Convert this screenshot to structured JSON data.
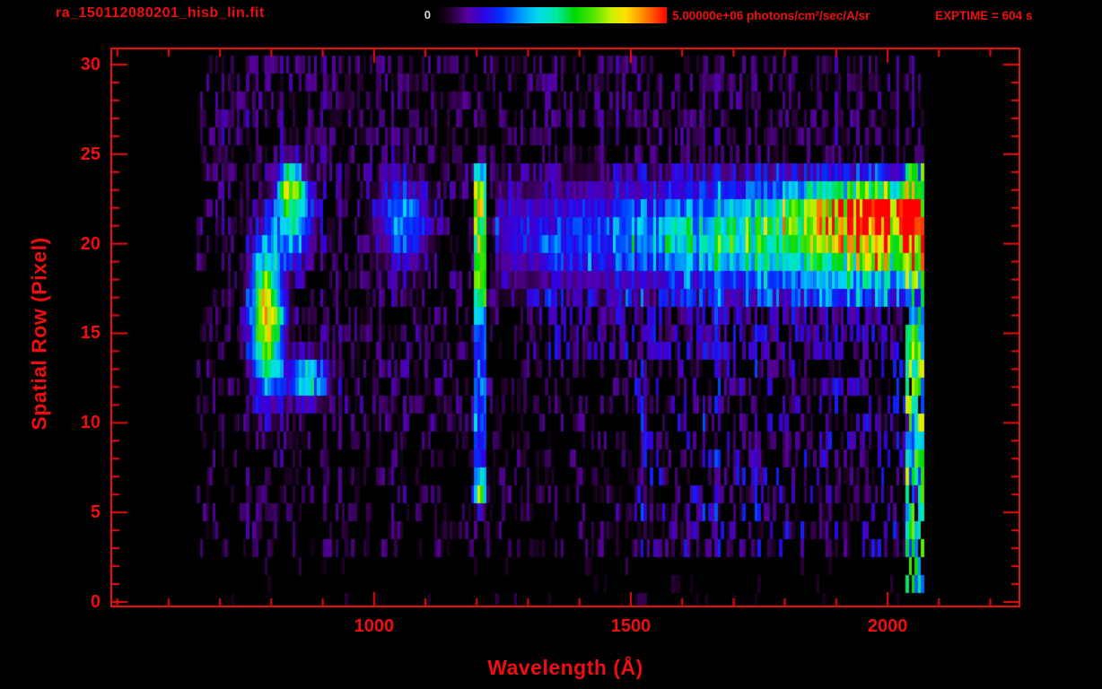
{
  "header": {
    "filename": "ra_150112080201_hisb_lin.fit",
    "colorbar_min": "0",
    "colorbar_max": "5.00000e+06 photons/cm²/sec/A/sr",
    "exptime": "EXPTIME = 604 s"
  },
  "colors": {
    "accent": "#ef0e0e",
    "background": "#000000",
    "colorbar_min_text": "#d9d9d9"
  },
  "chart_data": {
    "type": "heatmap",
    "title": "ra_150112080201_hisb_lin.fit",
    "xlabel": "Wavelength (Å)",
    "ylabel": "Spatial Row (Pixel)",
    "xlim": [
      490,
      2255
    ],
    "ylim": [
      -0.2,
      30.85
    ],
    "xticks": [
      1000,
      1500,
      2000
    ],
    "xminor_step": 100,
    "yticks": [
      0,
      5,
      10,
      15,
      20,
      25,
      30
    ],
    "yminor_step": 1,
    "grid": false,
    "colorbar": {
      "min": 0,
      "max": 5000000,
      "units": "photons/cm²/sec/A/sr",
      "position": "top"
    },
    "exposure_seconds": 604,
    "data_extent": {
      "wavelength": [
        655,
        2075
      ],
      "rows": [
        0,
        30
      ]
    },
    "bin_angstrom": 6,
    "seed": 20150112,
    "colormap": [
      [
        0.0,
        "#000000"
      ],
      [
        0.06,
        "#250030"
      ],
      [
        0.13,
        "#56009e"
      ],
      [
        0.2,
        "#3300e0"
      ],
      [
        0.28,
        "#0030ff"
      ],
      [
        0.36,
        "#0090ff"
      ],
      [
        0.44,
        "#00dcf0"
      ],
      [
        0.52,
        "#00e8a0"
      ],
      [
        0.6,
        "#00d800"
      ],
      [
        0.68,
        "#50e800"
      ],
      [
        0.76,
        "#c8f000"
      ],
      [
        0.82,
        "#ffe000"
      ],
      [
        0.88,
        "#ffa000"
      ],
      [
        0.94,
        "#ff5000"
      ],
      [
        1.0,
        "#ff0000"
      ]
    ],
    "features": [
      {
        "name": "background-noise",
        "type": "noise",
        "wavelength": [
          655,
          2075
        ],
        "rows": [
          3,
          30
        ],
        "density": 0.28,
        "amp": [
          0.03,
          0.13
        ]
      },
      {
        "name": "mid-left-noise",
        "type": "noise",
        "wavelength": [
          655,
          1240
        ],
        "rows": [
          10,
          24
        ],
        "density": 0.18,
        "amp": [
          0.04,
          0.16
        ]
      },
      {
        "name": "upper-rows-noise",
        "type": "noise",
        "wavelength": [
          660,
          2070
        ],
        "rows": [
          24,
          30
        ],
        "density": 0.25,
        "amp": [
          0.04,
          0.15
        ]
      },
      {
        "name": "lower-right-noise",
        "type": "noise",
        "wavelength": [
          1500,
          2070
        ],
        "rows": [
          3,
          17
        ],
        "density": 0.22,
        "amp": [
          0.07,
          0.26
        ]
      },
      {
        "name": "band-lower-halo",
        "type": "noise",
        "wavelength": [
          1300,
          2070
        ],
        "rows": [
          14,
          17
        ],
        "density": 0.4,
        "amp": [
          0.07,
          0.22
        ]
      },
      {
        "name": "bottom-sparse-noise",
        "type": "noise",
        "wavelength": [
          700,
          2030
        ],
        "rows": [
          0,
          2
        ],
        "density": 0.05,
        "amp": [
          0.03,
          0.08
        ]
      },
      {
        "name": "airglow-arc-core",
        "type": "gauss",
        "x": 792,
        "y": 16.0,
        "sx": 20,
        "sy": 2.8,
        "amp": 0.85
      },
      {
        "name": "airglow-upper-arm",
        "type": "gauss",
        "x": 845,
        "y": 21.6,
        "sx": 24,
        "sy": 1.6,
        "amp": 0.5
      },
      {
        "name": "airglow-top-spot",
        "type": "gauss",
        "x": 836,
        "y": 23.3,
        "sx": 13,
        "sy": 0.8,
        "amp": 0.5
      },
      {
        "name": "airglow-lower-arm",
        "type": "gauss",
        "x": 870,
        "y": 12.4,
        "sx": 26,
        "sy": 0.9,
        "amp": 0.45
      },
      {
        "name": "lyman-beta-patch",
        "type": "gauss",
        "x": 1055,
        "y": 21.2,
        "sx": 36,
        "sy": 1.7,
        "amp": 0.3
      },
      {
        "name": "lyman-alpha-line",
        "type": "vline",
        "x": 1207,
        "halfwidth": 9,
        "rows": [
          5.5,
          24.2
        ],
        "peak_rows": [
          17,
          23.6
        ],
        "amp_peak": 0.62,
        "amp_base": 0.2
      },
      {
        "name": "lyman-alpha-bottom-spot",
        "type": "gauss",
        "x": 1207,
        "y": 6.1,
        "sx": 8,
        "sy": 0.7,
        "amp": 0.5
      },
      {
        "name": "continuum-band",
        "type": "band",
        "wavelength": [
          1235,
          2072
        ],
        "row_center": 20.4,
        "row_sigma": 2.1,
        "rows": [
          16.3,
          24.3
        ],
        "amp_start": 0.16,
        "amp_end": 0.88
      },
      {
        "name": "continuum-red-streak",
        "type": "band",
        "wavelength": [
          1790,
          2066
        ],
        "row_center": 22.0,
        "row_sigma": 0.8,
        "rows": [
          20.5,
          23.6
        ],
        "amp_start": 0.2,
        "amp_end": 0.55
      },
      {
        "name": "right-edge-glow",
        "type": "vedge",
        "wavelength": [
          2036,
          2075
        ],
        "rows": [
          1,
          24.5
        ],
        "amp": [
          0.28,
          0.8
        ],
        "probability": 0.85
      }
    ]
  }
}
